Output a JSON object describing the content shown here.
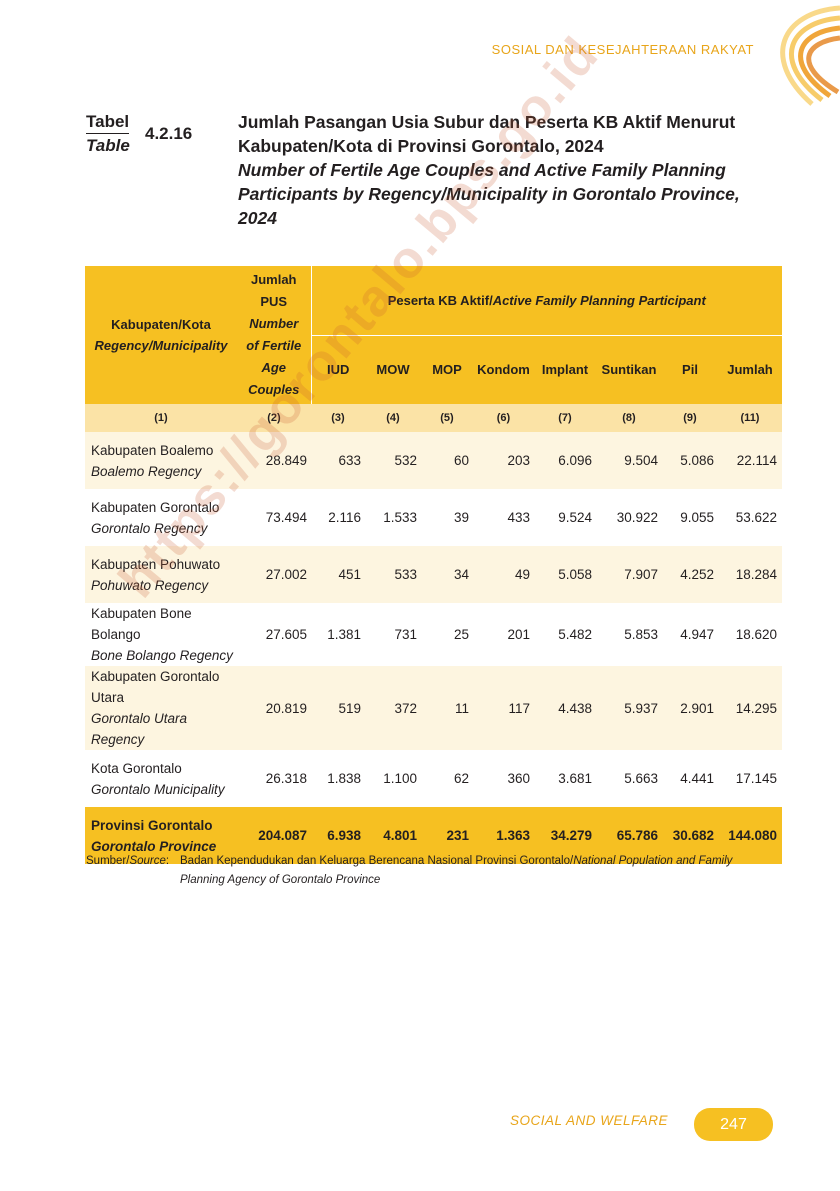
{
  "header": {
    "section_title": "SOSIAL DAN KESEJAHTERAAN RAKYAT"
  },
  "label": {
    "tabel": "Tabel",
    "table": "Table",
    "number": "4.2.16"
  },
  "title": {
    "id": "Jumlah Pasangan Usia Subur dan Peserta KB Aktif Menurut Kabupaten/Kota di Provinsi Gorontalo, 2024",
    "en": "Number of Fertile Age Couples and Active Family Planning Participants by Regency/Municipality in Gorontalo Province, 2024"
  },
  "table": {
    "col_region": {
      "id": "Kabupaten/Kota",
      "en": "Regency/Municipality"
    },
    "col_pus": {
      "id_1": "Jumlah",
      "id_2": "PUS",
      "en_1": "Number",
      "en_2": "of Fertile",
      "en_3": "Age",
      "en_4": "Couples"
    },
    "group_header": {
      "id": "Peserta KB Aktif/",
      "en": "Active Family Planning Participant"
    },
    "sub_headers": [
      "IUD",
      "MOW",
      "MOP",
      "Kondom",
      "Implant",
      "Suntikan",
      "Pil",
      "Jumlah"
    ],
    "col_numbers": [
      "(1)",
      "(2)",
      "(3)",
      "(4)",
      "(5)",
      "(6)",
      "(7)",
      "(8)",
      "(9)",
      "(11)"
    ],
    "rows": [
      {
        "name_id": "Kabupaten Boalemo",
        "name_en": "Boalemo Regency",
        "values": [
          "28.849",
          "633",
          "532",
          "60",
          "203",
          "6.096",
          "9.504",
          "5.086",
          "22.114"
        ]
      },
      {
        "name_id": "Kabupaten Gorontalo",
        "name_en": "Gorontalo Regency",
        "values": [
          "73.494",
          "2.116",
          "1.533",
          "39",
          "433",
          "9.524",
          "30.922",
          "9.055",
          "53.622"
        ]
      },
      {
        "name_id": "Kabupaten Pohuwato",
        "name_en": "Pohuwato Regency",
        "values": [
          "27.002",
          "451",
          "533",
          "34",
          "49",
          "5.058",
          "7.907",
          "4.252",
          "18.284"
        ]
      },
      {
        "name_id": "Kabupaten Bone Bolango",
        "name_en": "Bone Bolango Regency",
        "values": [
          "27.605",
          "1.381",
          "731",
          "25",
          "201",
          "5.482",
          "5.853",
          "4.947",
          "18.620"
        ]
      },
      {
        "name_id": "Kabupaten Gorontalo Utara",
        "name_en": "Gorontalo Utara Regency",
        "values": [
          "20.819",
          "519",
          "372",
          "11",
          "117",
          "4.438",
          "5.937",
          "2.901",
          "14.295"
        ]
      },
      {
        "name_id": "Kota Gorontalo",
        "name_en": "Gorontalo Municipality",
        "values": [
          "26.318",
          "1.838",
          "1.100",
          "62",
          "360",
          "3.681",
          "5.663",
          "4.441",
          "17.145"
        ]
      }
    ],
    "total": {
      "name_id": "Provinsi Gorontalo",
      "name_en": "Gorontalo Province",
      "values": [
        "204.087",
        "6.938",
        "4.801",
        "231",
        "1.363",
        "34.279",
        "65.786",
        "30.682",
        "144.080"
      ]
    }
  },
  "source": {
    "label_id": "Sumber/",
    "label_en": "Source",
    "text_id": "Badan Kependudukan dan Keluarga Berencana Nasional Provinsi Gorontalo/",
    "text_en": "National Population and Family Planning Agency of Gorontalo Province"
  },
  "watermark": "https://gorontalo.bps.go.id",
  "footer": {
    "label": "SOCIAL AND WELFARE",
    "page": "247"
  },
  "colors": {
    "accent": "#f6c022",
    "header_text": "#e8a51a",
    "number_row": "#fbe3a6",
    "stripe": "#fdf5e0"
  }
}
